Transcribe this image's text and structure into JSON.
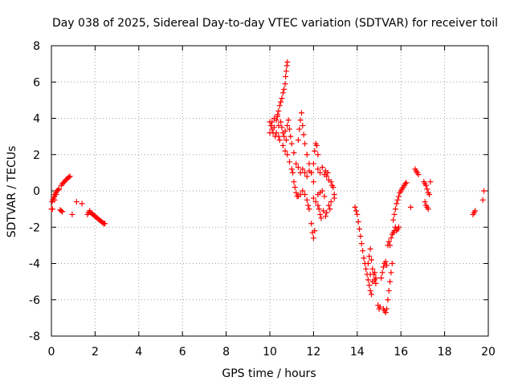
{
  "chart_data": {
    "type": "scatter",
    "title": "Day 038 of 2025, Sidereal Day-to-day VTEC variation (SDTVAR) for receiver toil",
    "xlabel": "GPS time / hours",
    "ylabel": "SDTVAR / TECUs",
    "xlim": [
      0,
      20
    ],
    "ylim": [
      -8,
      8
    ],
    "xticks": [
      "0",
      "2",
      "4",
      "6",
      "8",
      "10",
      "12",
      "14",
      "16",
      "18",
      "20"
    ],
    "yticks": [
      "-8",
      "-6",
      "-4",
      "-2",
      "0",
      "2",
      "4",
      "6",
      "8"
    ],
    "grid": true,
    "marker": "+",
    "color": "#ff0000",
    "series": [
      {
        "name": "SDTVAR",
        "points": [
          [
            0.0,
            -1.0
          ],
          [
            0.03,
            -0.6
          ],
          [
            0.06,
            -0.5
          ],
          [
            0.1,
            -0.4
          ],
          [
            0.13,
            -0.3
          ],
          [
            0.16,
            -0.2
          ],
          [
            0.2,
            -0.1
          ],
          [
            0.25,
            0.0
          ],
          [
            0.3,
            0.05
          ],
          [
            0.35,
            0.1
          ],
          [
            0.05,
            -1.0
          ],
          [
            0.15,
            -0.5
          ],
          [
            0.22,
            -0.2
          ],
          [
            0.4,
            -1.05
          ],
          [
            0.45,
            -1.1
          ],
          [
            0.5,
            -1.15
          ],
          [
            0.45,
            0.3
          ],
          [
            0.5,
            0.4
          ],
          [
            0.55,
            0.45
          ],
          [
            0.6,
            0.5
          ],
          [
            0.65,
            0.6
          ],
          [
            0.7,
            0.65
          ],
          [
            0.75,
            0.7
          ],
          [
            0.8,
            0.75
          ],
          [
            0.85,
            0.8
          ],
          [
            0.95,
            -1.3
          ],
          [
            1.15,
            -0.6
          ],
          [
            1.4,
            -0.7
          ],
          [
            1.65,
            -1.3
          ],
          [
            1.7,
            -1.2
          ],
          [
            1.75,
            -1.1
          ],
          [
            1.8,
            -1.2
          ],
          [
            1.85,
            -1.25
          ],
          [
            1.9,
            -1.3
          ],
          [
            1.95,
            -1.35
          ],
          [
            2.0,
            -1.4
          ],
          [
            2.05,
            -1.45
          ],
          [
            2.1,
            -1.5
          ],
          [
            2.15,
            -1.55
          ],
          [
            2.2,
            -1.6
          ],
          [
            2.25,
            -1.65
          ],
          [
            2.3,
            -1.7
          ],
          [
            2.35,
            -1.75
          ],
          [
            2.4,
            -1.8
          ],
          [
            2.45,
            -1.8
          ],
          [
            10.0,
            3.8
          ],
          [
            10.05,
            3.6
          ],
          [
            10.1,
            3.4
          ],
          [
            10.15,
            3.2
          ],
          [
            10.2,
            3.5
          ],
          [
            10.25,
            3.0
          ],
          [
            10.3,
            3.9
          ],
          [
            10.35,
            4.1
          ],
          [
            10.4,
            3.0
          ],
          [
            10.45,
            2.8
          ],
          [
            10.0,
            3.2
          ],
          [
            10.1,
            3.8
          ],
          [
            10.2,
            4.0
          ],
          [
            10.3,
            3.2
          ],
          [
            10.4,
            3.6
          ],
          [
            10.35,
            4.2
          ],
          [
            10.4,
            4.4
          ],
          [
            10.45,
            4.7
          ],
          [
            10.5,
            4.9
          ],
          [
            10.55,
            5.1
          ],
          [
            10.6,
            5.4
          ],
          [
            10.65,
            5.6
          ],
          [
            10.7,
            5.9
          ],
          [
            10.72,
            6.3
          ],
          [
            10.75,
            6.6
          ],
          [
            10.78,
            6.9
          ],
          [
            10.8,
            7.1
          ],
          [
            10.5,
            3.8
          ],
          [
            10.55,
            3.5
          ],
          [
            10.6,
            3.2
          ],
          [
            10.65,
            3.0
          ],
          [
            10.7,
            3.3
          ],
          [
            10.75,
            2.8
          ],
          [
            10.8,
            3.6
          ],
          [
            10.85,
            3.9
          ],
          [
            10.9,
            3.4
          ],
          [
            10.95,
            3.0
          ],
          [
            10.6,
            2.5
          ],
          [
            10.7,
            2.2
          ],
          [
            10.8,
            2.0
          ],
          [
            10.9,
            1.6
          ],
          [
            11.0,
            1.2
          ],
          [
            11.05,
            1.0
          ],
          [
            11.1,
            0.5
          ],
          [
            11.15,
            0.2
          ],
          [
            11.2,
            -0.1
          ],
          [
            11.25,
            -0.3
          ],
          [
            11.0,
            2.6
          ],
          [
            11.1,
            2.1
          ],
          [
            11.2,
            1.5
          ],
          [
            11.3,
            1.3
          ],
          [
            11.4,
            1.0
          ],
          [
            11.3,
            2.8
          ],
          [
            11.35,
            3.4
          ],
          [
            11.4,
            3.9
          ],
          [
            11.45,
            4.3
          ],
          [
            11.5,
            3.6
          ],
          [
            11.55,
            3.1
          ],
          [
            11.3,
            -0.3
          ],
          [
            11.4,
            -0.2
          ],
          [
            11.5,
            0.0
          ],
          [
            11.6,
            -0.2
          ],
          [
            11.7,
            -0.5
          ],
          [
            11.75,
            -0.8
          ],
          [
            11.8,
            -1.0
          ],
          [
            11.5,
            1.2
          ],
          [
            11.6,
            1.0
          ],
          [
            11.7,
            0.8
          ],
          [
            11.8,
            1.1
          ],
          [
            11.9,
            1.0
          ],
          [
            12.0,
            0.5
          ],
          [
            11.6,
            2.6
          ],
          [
            11.7,
            2.0
          ],
          [
            11.8,
            1.5
          ],
          [
            11.9,
            1.0
          ],
          [
            12.0,
            1.5
          ],
          [
            12.05,
            2.2
          ],
          [
            12.1,
            2.6
          ],
          [
            12.15,
            2.5
          ],
          [
            12.2,
            2.0
          ],
          [
            11.9,
            -1.8
          ],
          [
            11.95,
            -2.3
          ],
          [
            12.0,
            -2.6
          ],
          [
            12.05,
            -2.2
          ],
          [
            12.0,
            -0.4
          ],
          [
            12.1,
            -0.6
          ],
          [
            12.2,
            -0.8
          ],
          [
            12.25,
            -1.0
          ],
          [
            12.3,
            -1.3
          ],
          [
            12.35,
            -1.5
          ],
          [
            12.2,
            1.2
          ],
          [
            12.3,
            1.0
          ],
          [
            12.4,
            1.3
          ],
          [
            12.5,
            0.9
          ],
          [
            12.55,
            1.1
          ],
          [
            12.6,
            0.8
          ],
          [
            12.65,
            1.0
          ],
          [
            12.7,
            0.6
          ],
          [
            12.2,
            -0.2
          ],
          [
            12.3,
            -0.1
          ],
          [
            12.4,
            0.0
          ],
          [
            12.5,
            -0.3
          ],
          [
            12.45,
            -1.1
          ],
          [
            12.55,
            -1.4
          ],
          [
            12.6,
            -1.2
          ],
          [
            12.7,
            -0.8
          ],
          [
            12.75,
            -1.0
          ],
          [
            12.8,
            -0.6
          ],
          [
            12.8,
            0.5
          ],
          [
            12.85,
            0.3
          ],
          [
            12.9,
            0.2
          ],
          [
            12.95,
            -0.2
          ],
          [
            12.95,
            -0.4
          ],
          [
            13.9,
            -0.9
          ],
          [
            13.95,
            -1.1
          ],
          [
            14.0,
            -1.3
          ],
          [
            14.05,
            -1.7
          ],
          [
            14.1,
            -2.1
          ],
          [
            14.15,
            -2.5
          ],
          [
            14.2,
            -2.9
          ],
          [
            14.25,
            -3.3
          ],
          [
            14.3,
            -3.7
          ],
          [
            14.35,
            -4.0
          ],
          [
            14.4,
            -4.3
          ],
          [
            14.45,
            -4.6
          ],
          [
            14.5,
            -4.9
          ],
          [
            14.55,
            -5.2
          ],
          [
            14.6,
            -5.5
          ],
          [
            14.65,
            -5.7
          ],
          [
            14.5,
            -4.0
          ],
          [
            14.55,
            -3.6
          ],
          [
            14.6,
            -3.2
          ],
          [
            14.65,
            -3.8
          ],
          [
            14.7,
            -4.3
          ],
          [
            14.75,
            -4.6
          ],
          [
            14.8,
            -4.9
          ],
          [
            14.85,
            -5.1
          ],
          [
            14.6,
            -4.6
          ],
          [
            14.7,
            -5.0
          ],
          [
            14.8,
            -4.5
          ],
          [
            14.85,
            -4.8
          ],
          [
            14.95,
            -6.3
          ],
          [
            15.0,
            -6.5
          ],
          [
            15.05,
            -6.4
          ],
          [
            15.1,
            -4.8
          ],
          [
            15.15,
            -4.5
          ],
          [
            15.2,
            -4.2
          ],
          [
            15.25,
            -4.0
          ],
          [
            15.3,
            -3.9
          ],
          [
            15.35,
            -4.1
          ],
          [
            15.2,
            -6.5
          ],
          [
            15.25,
            -6.6
          ],
          [
            15.3,
            -6.7
          ],
          [
            15.35,
            -6.5
          ],
          [
            15.4,
            -6.0
          ],
          [
            15.45,
            -5.5
          ],
          [
            15.5,
            -5.0
          ],
          [
            15.55,
            -4.5
          ],
          [
            15.6,
            -4.0
          ],
          [
            15.4,
            -3.0
          ],
          [
            15.45,
            -2.8
          ],
          [
            15.5,
            -3.0
          ],
          [
            15.55,
            -2.6
          ],
          [
            15.6,
            -2.4
          ],
          [
            15.65,
            -2.3
          ],
          [
            15.7,
            -2.2
          ],
          [
            15.75,
            -2.0
          ],
          [
            15.8,
            -2.2
          ],
          [
            15.85,
            -2.1
          ],
          [
            15.9,
            -2.0
          ],
          [
            15.65,
            -1.6
          ],
          [
            15.7,
            -1.3
          ],
          [
            15.75,
            -1.0
          ],
          [
            15.8,
            -0.7
          ],
          [
            15.85,
            -0.5
          ],
          [
            15.9,
            -0.3
          ],
          [
            15.95,
            -0.1
          ],
          [
            16.0,
            0.0
          ],
          [
            16.05,
            0.1
          ],
          [
            16.1,
            0.2
          ],
          [
            16.15,
            0.3
          ],
          [
            16.2,
            0.4
          ],
          [
            16.25,
            0.45
          ],
          [
            16.45,
            -0.9
          ],
          [
            16.65,
            1.2
          ],
          [
            16.7,
            1.1
          ],
          [
            16.75,
            1.0
          ],
          [
            16.8,
            0.9
          ],
          [
            17.05,
            0.5
          ],
          [
            17.1,
            0.4
          ],
          [
            17.15,
            0.3
          ],
          [
            17.2,
            0.1
          ],
          [
            17.25,
            -0.1
          ],
          [
            17.3,
            -0.2
          ],
          [
            17.35,
            0.5
          ],
          [
            17.1,
            -0.6
          ],
          [
            17.15,
            -0.8
          ],
          [
            17.2,
            -0.9
          ],
          [
            17.25,
            -1.0
          ],
          [
            19.3,
            -1.3
          ],
          [
            19.35,
            -1.2
          ],
          [
            19.4,
            -1.1
          ],
          [
            19.75,
            -0.5
          ],
          [
            19.8,
            0.0
          ]
        ]
      }
    ]
  }
}
